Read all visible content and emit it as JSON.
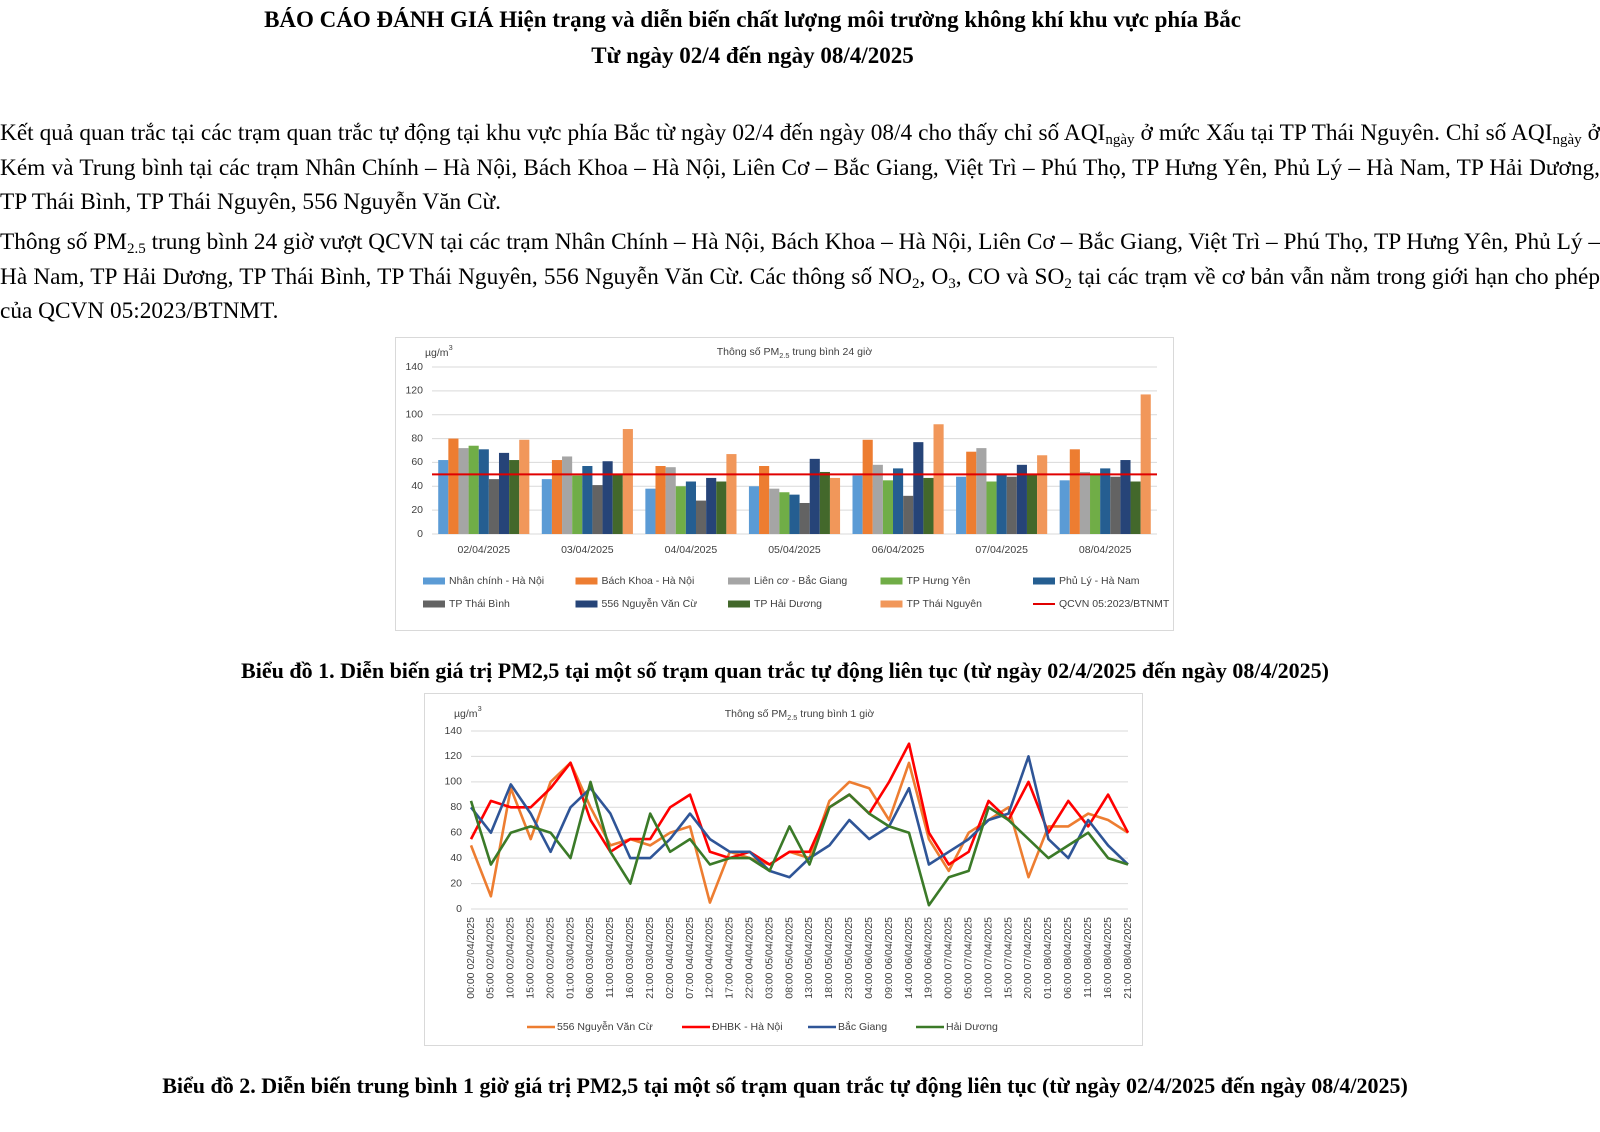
{
  "header": {
    "title": "BÁO CÁO ĐÁNH GIÁ Hiện trạng và diễn biến chất lượng môi trường không khí khu vực phía Bắc",
    "subtitle": "Từ ngày 02/4 đến ngày 08/4/2025"
  },
  "paragraphs": [
    [
      {
        "text": "Kết quả quan trắc tại các trạm quan trắc tự động tại khu vực phía Bắc từ ngày 02/4 đến ngày 08/4 cho thấy chỉ số AQI"
      },
      {
        "sub": "ngày"
      },
      {
        "text": " ở mức Xấu tại TP Thái Nguyên. Chỉ số AQI"
      },
      {
        "sub": "ngày"
      },
      {
        "text": " ở Kém và Trung bình tại các trạm Nhân Chính – Hà Nội, Bách Khoa – Hà Nội, Liên Cơ – Bắc Giang, Việt Trì – Phú Thọ, TP Hưng Yên, Phủ Lý – Hà Nam, TP Hải Dương, TP Thái Bình, TP Thái Nguyên, 556 Nguyễn Văn Cừ."
      }
    ],
    [
      {
        "text": "Thông số PM"
      },
      {
        "sub": "2.5"
      },
      {
        "text": " trung bình 24 giờ vượt QCVN tại các trạm Nhân Chính – Hà Nội, Bách Khoa – Hà Nội, Liên Cơ – Bắc Giang, Việt Trì – Phú Thọ, TP Hưng Yên, Phủ Lý – Hà Nam, TP Hải Dương, TP Thái Bình, TP Thái Nguyên, 556 Nguyễn Văn Cừ. Các thông số NO"
      },
      {
        "sub": "2"
      },
      {
        "text": ", O"
      },
      {
        "sub": "3"
      },
      {
        "text": ", CO và SO"
      },
      {
        "sub": "2"
      },
      {
        "text": " tại các trạm về cơ bản vẫn nằm trong giới hạn cho phép của QCVN 05:2023/BTNMT."
      }
    ]
  ],
  "chart_data": [
    {
      "type": "bar",
      "title": [
        {
          "text": "Thông số PM"
        },
        {
          "sub": "2.5"
        },
        {
          "text": " trung bình 24 giờ"
        }
      ],
      "y_unit": [
        {
          "text": "µg/m"
        },
        {
          "sup": "3"
        }
      ],
      "categories": [
        "02/04/2025",
        "03/04/2025",
        "04/04/2025",
        "05/04/2025",
        "06/04/2025",
        "07/04/2025",
        "08/04/2025"
      ],
      "series": [
        {
          "name": "Nhân chính - Hà Nội",
          "color": "#5b9bd5",
          "values": [
            62,
            46,
            38,
            40,
            49,
            48,
            45
          ]
        },
        {
          "name": "Bách Khoa - Hà Nội",
          "color": "#ed7d31",
          "values": [
            80,
            62,
            57,
            57,
            79,
            69,
            71
          ]
        },
        {
          "name": "Liên cơ - Bắc Giang",
          "color": "#a5a5a5",
          "values": [
            72,
            65,
            56,
            38,
            58,
            72,
            52
          ]
        },
        {
          "name": "TP Hưng Yên",
          "color": "#70ad47",
          "values": [
            74,
            49,
            40,
            35,
            45,
            44,
            50
          ]
        },
        {
          "name": "Phủ Lý - Hà Nam",
          "color": "#255e91",
          "values": [
            71,
            57,
            44,
            33,
            55,
            50,
            55
          ]
        },
        {
          "name": "TP Thái Bình",
          "color": "#636363",
          "values": [
            46,
            41,
            28,
            26,
            32,
            48,
            48
          ]
        },
        {
          "name": "556 Nguyễn Văn Cừ",
          "color": "#264478",
          "values": [
            68,
            61,
            47,
            63,
            77,
            58,
            62
          ]
        },
        {
          "name": "TP Hải Dương",
          "color": "#43682b",
          "values": [
            62,
            50,
            44,
            52,
            47,
            50,
            44
          ]
        },
        {
          "name": "TP Thái Nguyên",
          "color": "#f1975a",
          "values": [
            79,
            88,
            67,
            47,
            92,
            66,
            117
          ]
        }
      ],
      "threshold": {
        "name": "QCVN 05:2023/BTNMT",
        "value": 50,
        "color": "#e00000"
      },
      "ylim": [
        0,
        140
      ],
      "yticks": [
        0,
        20,
        40,
        60,
        80,
        100,
        120,
        140
      ],
      "grid": true
    },
    {
      "type": "line",
      "title": [
        {
          "text": "Thông số PM"
        },
        {
          "sub": "2.5"
        },
        {
          "text": " trung bình 1 giờ"
        }
      ],
      "y_unit": [
        {
          "text": "µg/m"
        },
        {
          "sup": "3"
        }
      ],
      "categories": [
        "00:00 02/04/2025",
        "05:00 02/04/2025",
        "10:00 02/04/2025",
        "15:00 02/04/2025",
        "20:00 02/04/2025",
        "01:00 03/04/2025",
        "06:00 03/04/2025",
        "11:00 03/04/2025",
        "16:00 03/04/2025",
        "21:00 03/04/2025",
        "02:00 04/04/2025",
        "07:00 04/04/2025",
        "12:00 04/04/2025",
        "17:00 04/04/2025",
        "22:00 04/04/2025",
        "03:00 05/04/2025",
        "08:00 05/04/2025",
        "13:00 05/04/2025",
        "18:00 05/04/2025",
        "23:00 05/04/2025",
        "04:00 06/04/2025",
        "09:00 06/04/2025",
        "14:00 06/04/2025",
        "19:00 06/04/2025",
        "00:00 07/04/2025",
        "05:00 07/04/2025",
        "10:00 07/04/2025",
        "15:00 07/04/2025",
        "20:00 07/04/2025",
        "01:00 08/04/2025",
        "06:00 08/04/2025",
        "11:00 08/04/2025",
        "16:00 08/04/2025",
        "21:00 08/04/2025"
      ],
      "series": [
        {
          "name": "556 Nguyễn Văn Cừ",
          "color": "#ed7d31",
          "values": [
            50,
            10,
            95,
            55,
            100,
            115,
            80,
            50,
            55,
            50,
            60,
            65,
            5,
            45,
            40,
            35,
            45,
            40,
            85,
            100,
            95,
            70,
            115,
            55,
            30,
            60,
            70,
            80,
            25,
            65,
            65,
            75,
            70,
            60
          ]
        },
        {
          "name": "ĐHBK - Hà Nội",
          "color": "#ff0000",
          "values": [
            55,
            85,
            80,
            80,
            95,
            115,
            70,
            45,
            55,
            55,
            80,
            90,
            45,
            40,
            45,
            35,
            45,
            45,
            80,
            90,
            75,
            100,
            130,
            60,
            35,
            45,
            85,
            70,
            100,
            60,
            85,
            65,
            90,
            60
          ]
        },
        {
          "name": "Bắc Giang",
          "color": "#2f5597",
          "values": [
            80,
            60,
            98,
            75,
            45,
            80,
            95,
            75,
            40,
            40,
            55,
            75,
            55,
            45,
            45,
            30,
            25,
            40,
            50,
            70,
            55,
            65,
            95,
            35,
            45,
            55,
            70,
            75,
            120,
            55,
            40,
            70,
            50,
            35
          ]
        },
        {
          "name": "Hải Dương",
          "color": "#3b7a28",
          "values": [
            85,
            35,
            60,
            65,
            60,
            40,
            100,
            45,
            20,
            75,
            45,
            55,
            35,
            40,
            40,
            30,
            65,
            35,
            80,
            90,
            75,
            65,
            60,
            3,
            25,
            30,
            80,
            70,
            55,
            40,
            50,
            60,
            40,
            35
          ]
        }
      ],
      "ylim": [
        0,
        140
      ],
      "yticks": [
        0,
        20,
        40,
        60,
        80,
        100,
        120,
        140
      ],
      "grid": true
    }
  ],
  "captions": [
    "Biểu đồ 1. Diễn biến giá trị PM2,5 tại một số trạm quan trắc tự động liên tục (từ ngày 02/4/2025 đến ngày 08/4/2025)",
    "Biểu đồ 2. Diễn biến trung bình 1 giờ giá trị PM2,5 tại một số trạm quan trắc tự động liên tục (từ ngày 02/4/2025 đến ngày 08/4/2025)"
  ]
}
